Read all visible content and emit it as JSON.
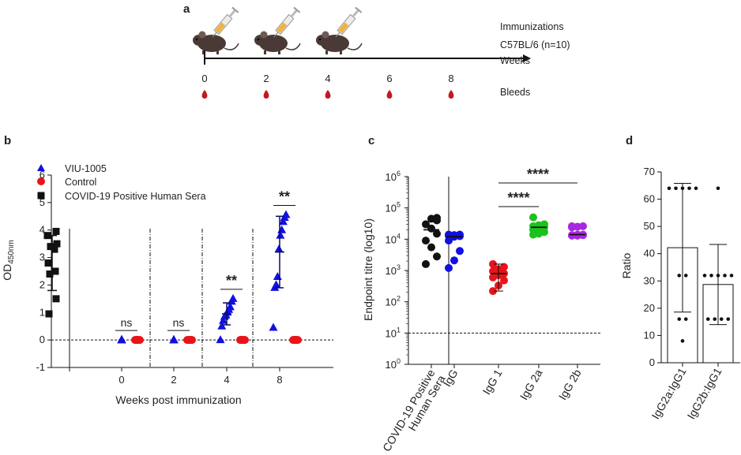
{
  "panel_labels": {
    "a": "a",
    "b": "b",
    "c": "c",
    "d": "d"
  },
  "timeline": {
    "legend_lines": [
      "Immunizations",
      "C57BL/6 (n=10)",
      "Weeks",
      "Bleeds"
    ],
    "week_ticks": [
      "0",
      "2",
      "4",
      "6",
      "8"
    ],
    "immunization_weeks": [
      0,
      2,
      4
    ],
    "bleed_weeks": [
      0,
      2,
      4,
      6,
      8
    ],
    "colors": {
      "mouse": "#4a3a36",
      "syringe_fluid": "#f1b33c",
      "blood": "#c21a21"
    }
  },
  "chart_data": [
    {
      "id": "b",
      "type": "scatter",
      "title": "",
      "xlabel": "Weeks post immunization",
      "ylabel": "OD450nm",
      "ylabel_main": "OD",
      "ylabel_sub": "450nm",
      "ylim": [
        -1,
        6
      ],
      "yticks": [
        -1,
        0,
        1,
        2,
        3,
        4,
        5,
        6
      ],
      "categories": [
        "0",
        "2",
        "4",
        "8"
      ],
      "legend": [
        {
          "label": "VIU-1005",
          "marker": "triangle",
          "color": "#1010e0"
        },
        {
          "label": "Control",
          "marker": "circle",
          "color": "#e8141a"
        },
        {
          "label": "COVID-19 Positive Human Sera",
          "marker": "square",
          "color": "#111111"
        }
      ],
      "reference_series": {
        "name": "COVID-19 Positive Human Sera",
        "values": [
          0.95,
          1.5,
          2.4,
          2.5,
          2.8,
          3.3,
          3.4,
          3.5,
          3.8,
          3.95
        ],
        "mean": 2.8,
        "sd": 1.0
      },
      "groups": [
        {
          "week": "0",
          "viu": [
            0,
            0,
            0,
            0,
            0,
            0,
            0,
            0,
            0,
            0
          ],
          "control": [
            0,
            0,
            0,
            0,
            0,
            0,
            0,
            0,
            0,
            0
          ],
          "significance": "ns"
        },
        {
          "week": "2",
          "viu": [
            0,
            0,
            0,
            0,
            0,
            0,
            0,
            0,
            0,
            0
          ],
          "control": [
            0,
            0,
            0,
            0,
            0,
            0,
            0,
            0,
            0,
            0
          ],
          "significance": "ns"
        },
        {
          "week": "4",
          "viu": [
            0,
            0.5,
            0.7,
            0.85,
            0.9,
            1.0,
            1.1,
            1.2,
            1.4,
            1.5
          ],
          "viu_mean": 0.95,
          "viu_sd": 0.4,
          "control": [
            0,
            0,
            0,
            0,
            0,
            0,
            0,
            0,
            0,
            0
          ],
          "significance": "**"
        },
        {
          "week": "8",
          "viu": [
            0.45,
            1.9,
            2.0,
            2.3,
            3.3,
            3.8,
            4.0,
            4.3,
            4.45,
            4.55
          ],
          "viu_mean": 3.2,
          "viu_sd": 1.3,
          "control": [
            0,
            0,
            0,
            0,
            0,
            0,
            0,
            0,
            0,
            0
          ],
          "significance": "**"
        }
      ]
    },
    {
      "id": "c",
      "type": "scatter",
      "title": "",
      "xlabel": "",
      "ylabel": "Endpoint titre (log10)",
      "yscale": "log",
      "ylim": [
        1,
        1000000
      ],
      "yticks": [
        {
          "base": "10",
          "exp": "0"
        },
        {
          "base": "10",
          "exp": "1"
        },
        {
          "base": "10",
          "exp": "2"
        },
        {
          "base": "10",
          "exp": "3"
        },
        {
          "base": "10",
          "exp": "4"
        },
        {
          "base": "10",
          "exp": "5"
        },
        {
          "base": "10",
          "exp": "6"
        }
      ],
      "detection_limit": 10,
      "categories": [
        "COVID-19 Positive Human Sera",
        "IgG",
        "IgG 1",
        "IgG 2a",
        "IgG 2b"
      ],
      "category_lines": [
        [
          "COVID-19 Positive",
          "Human Sera"
        ],
        [
          "IgG"
        ],
        [
          "IgG 1"
        ],
        [
          "IgG 2a"
        ],
        [
          "IgG 2b"
        ]
      ],
      "series": [
        {
          "name": "COVID-19 Positive Human Sera",
          "color": "#111111",
          "values": [
            1600,
            2800,
            5500,
            9000,
            15000,
            22000,
            30000,
            40000,
            45000,
            48000
          ],
          "mean": 20000
        },
        {
          "name": "IgG",
          "color": "#1010e0",
          "values": [
            1200,
            2100,
            4200,
            9000,
            12000,
            12500,
            13000,
            13500,
            14000,
            14000
          ],
          "mean": 12000
        },
        {
          "name": "IgG 1",
          "color": "#e8141a",
          "values": [
            220,
            330,
            480,
            600,
            700,
            800,
            950,
            1100,
            1300,
            1600
          ],
          "mean": 800
        },
        {
          "name": "IgG 2a",
          "color": "#1cc21c",
          "values": [
            14000,
            15000,
            17000,
            20000,
            22000,
            24000,
            26000,
            28000,
            30000,
            50000
          ],
          "mean": 24000
        },
        {
          "name": "IgG 2b",
          "color": "#a828e0",
          "values": [
            13000,
            13000,
            13500,
            13500,
            14000,
            14000,
            24000,
            25000,
            26000,
            26000
          ],
          "mean": 14000
        }
      ],
      "comparisons": [
        {
          "from": "IgG 1",
          "to": "IgG 2a",
          "label": "****"
        },
        {
          "from": "IgG 1",
          "to": "IgG 2b",
          "label": "****"
        }
      ]
    },
    {
      "id": "d",
      "type": "bar",
      "title": "",
      "xlabel": "",
      "ylabel": "Ratio",
      "ylim": [
        0,
        70
      ],
      "yticks": [
        0,
        10,
        20,
        30,
        40,
        50,
        60,
        70
      ],
      "categories": [
        "IgG2a:IgG1",
        "IgG2b:IgG1"
      ],
      "values": [
        42.2,
        28.7
      ],
      "errors": [
        23.6,
        14.7
      ],
      "points": [
        [
          8,
          16,
          16,
          32,
          32,
          64,
          64,
          64,
          64,
          64
        ],
        [
          16,
          16,
          16,
          16,
          32,
          32,
          32,
          32,
          32,
          64
        ]
      ]
    }
  ]
}
